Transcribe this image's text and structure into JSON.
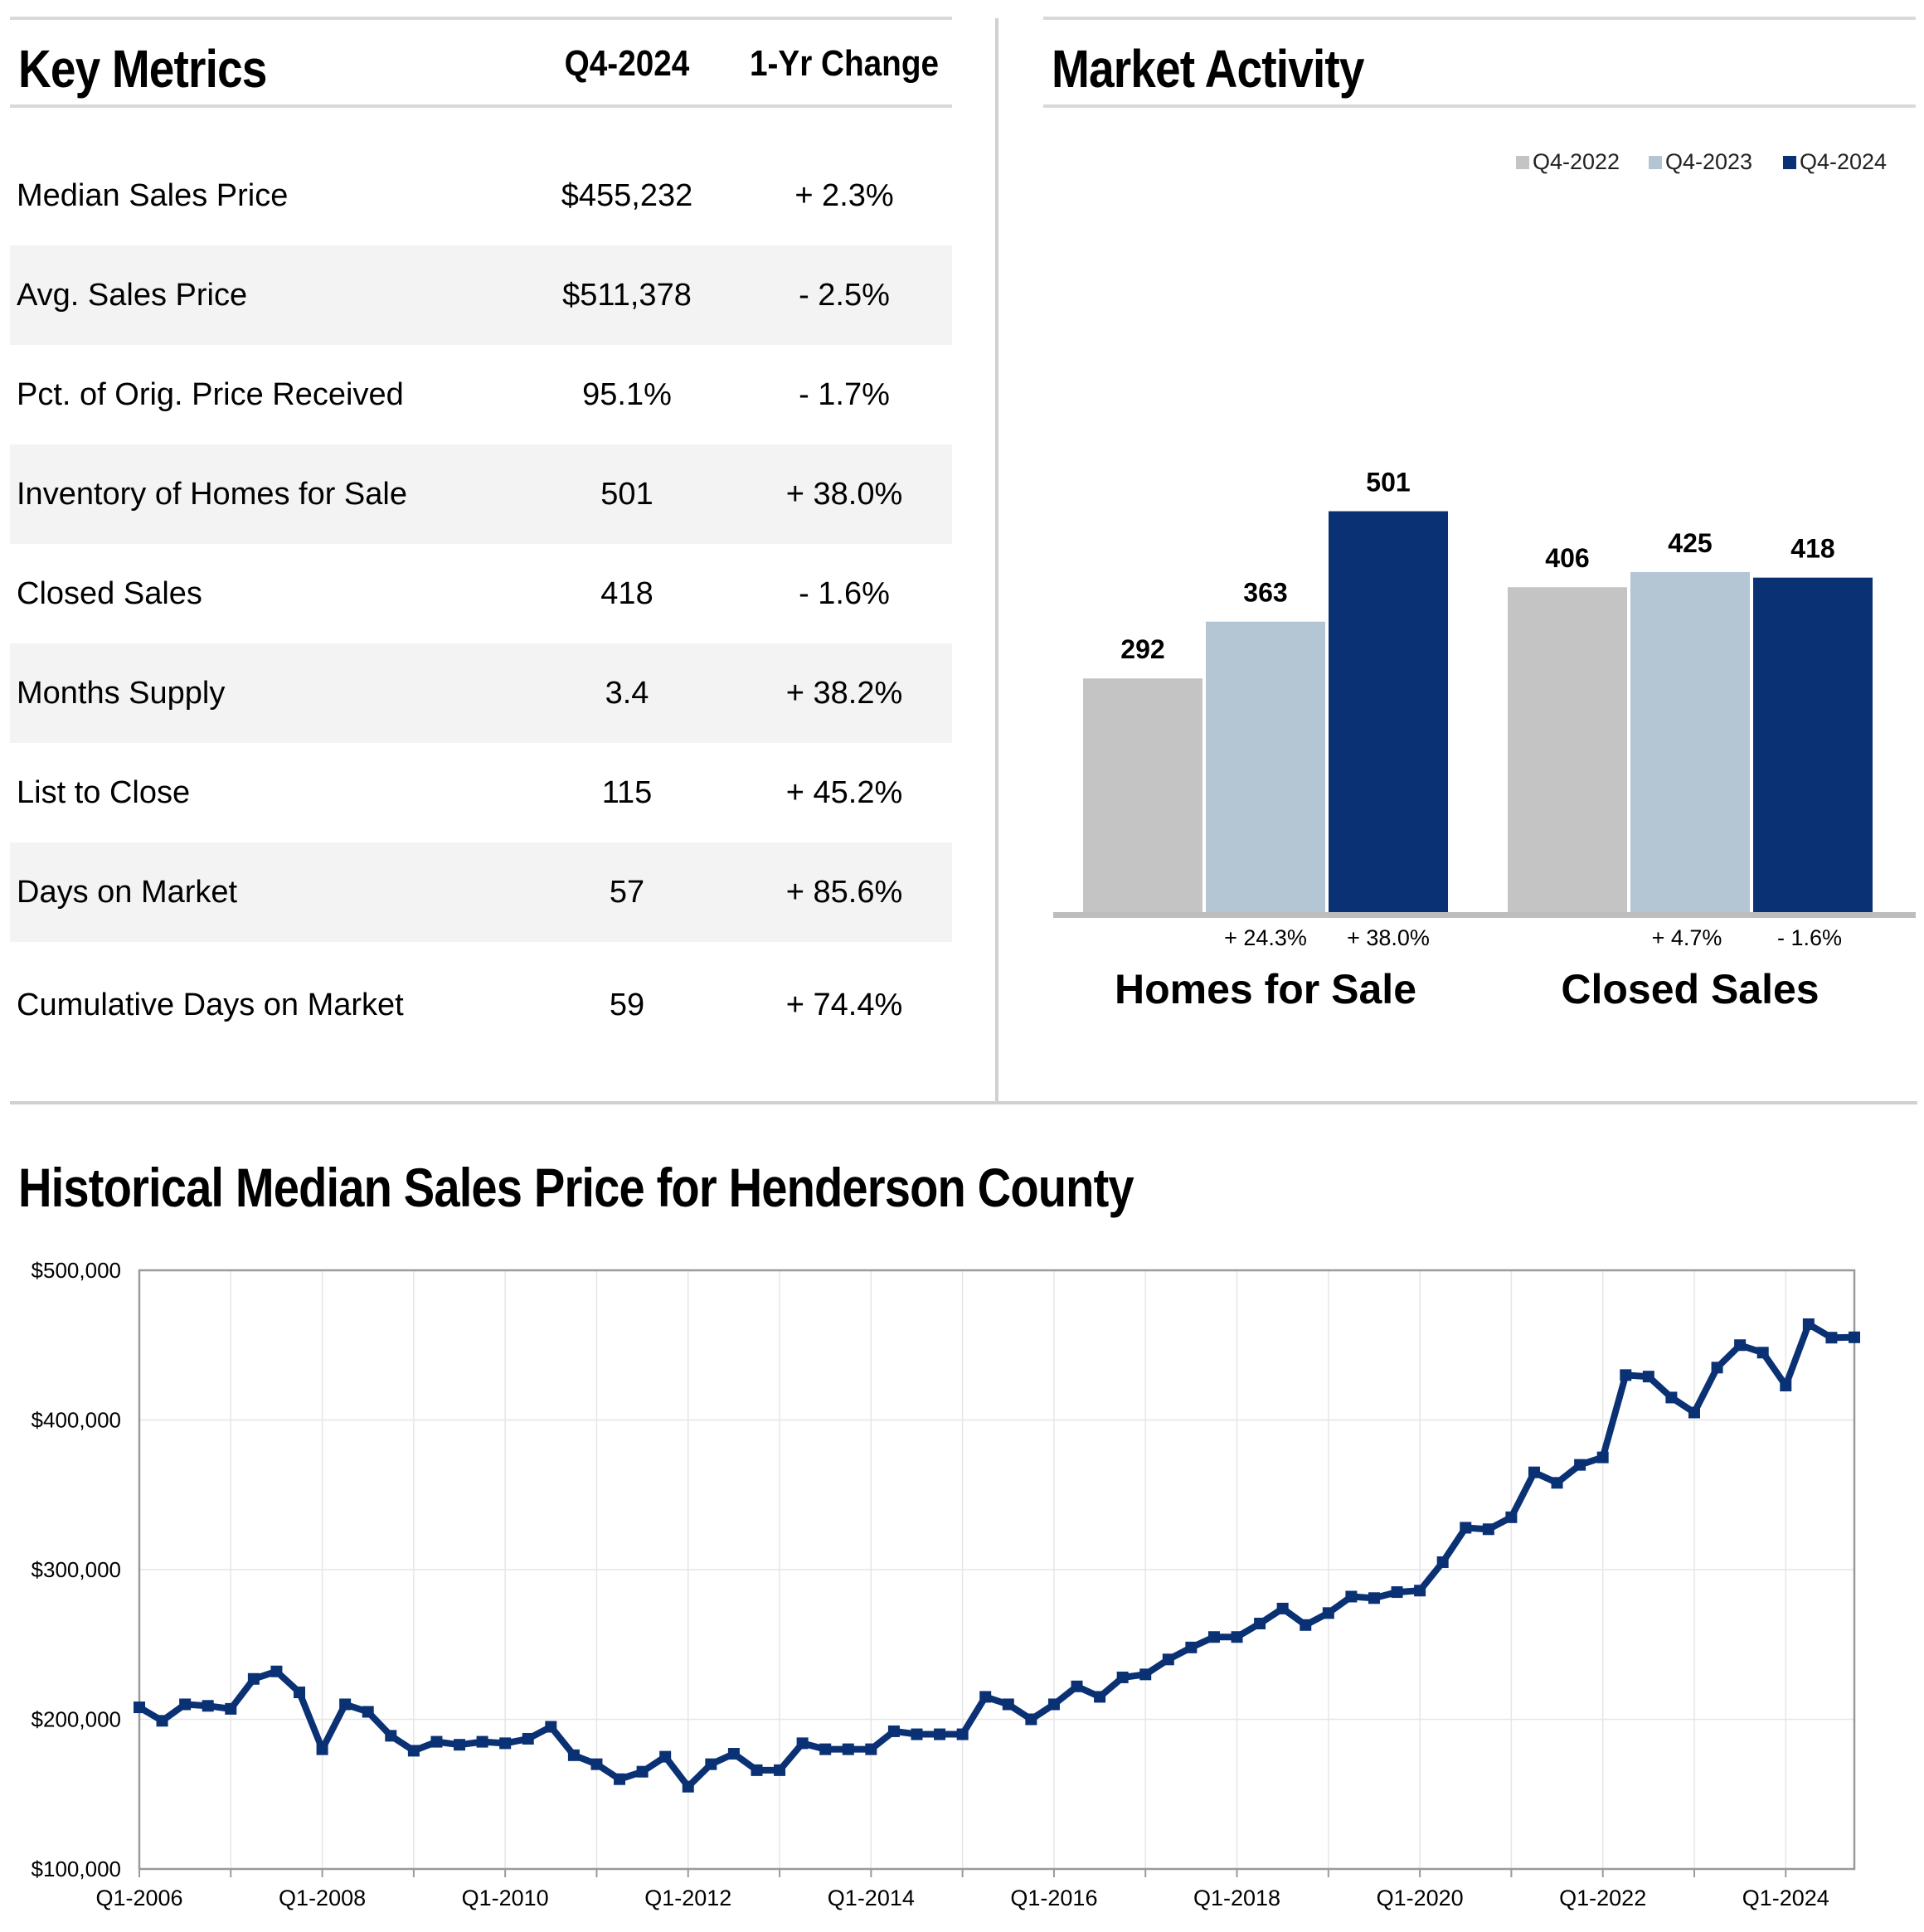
{
  "key_metrics": {
    "title": "Key Metrics",
    "col_period": "Q4-2024",
    "col_change": "1-Yr Change",
    "rows": [
      {
        "label": "Median Sales Price",
        "value": "$455,232",
        "change": "+ 2.3%"
      },
      {
        "label": "Avg. Sales Price",
        "value": "$511,378",
        "change": "- 2.5%"
      },
      {
        "label": "Pct. of Orig. Price Received",
        "value": "95.1%",
        "change": "- 1.7%"
      },
      {
        "label": "Inventory of Homes for Sale",
        "value": "501",
        "change": "+ 38.0%"
      },
      {
        "label": "Closed Sales",
        "value": "418",
        "change": "- 1.6%"
      },
      {
        "label": "Months Supply",
        "value": "3.4",
        "change": "+ 38.2%"
      },
      {
        "label": "List to Close",
        "value": "115",
        "change": "+ 45.2%"
      },
      {
        "label": "Days on Market",
        "value": "57",
        "change": "+ 85.6%"
      },
      {
        "label": "Cumulative Days on Market",
        "value": "59",
        "change": "+ 74.4%"
      }
    ]
  },
  "market_activity": {
    "title": "Market Activity"
  },
  "historical": {
    "title": "Historical Median Sales Price for Henderson County"
  },
  "colors": {
    "q4_2022": "#c4c4c4",
    "q4_2023": "#b4c5d4",
    "q4_2024": "#0b3175",
    "line": "#0b3175",
    "grid": "#e6e6e6"
  },
  "chart_data": [
    {
      "type": "bar",
      "title": "Market Activity",
      "categories": [
        "Homes for Sale",
        "Closed Sales"
      ],
      "series": [
        {
          "name": "Q4-2022",
          "values": [
            292,
            406
          ]
        },
        {
          "name": "Q4-2023",
          "values": [
            363,
            425
          ]
        },
        {
          "name": "Q4-2024",
          "values": [
            501,
            418
          ]
        }
      ],
      "changes": [
        [
          "+ 24.3%",
          "+ 38.0%"
        ],
        [
          "+ 4.7%",
          "- 1.6%"
        ]
      ],
      "legend": "top-right",
      "ylim": [
        0,
        520
      ]
    },
    {
      "type": "line",
      "title": "Historical Median Sales Price for Henderson County",
      "xlabel": "",
      "ylabel": "",
      "ylim": [
        100000,
        500000
      ],
      "y_ticks": [
        "$100,000",
        "$200,000",
        "$300,000",
        "$400,000",
        "$500,000"
      ],
      "y_tick_values": [
        100000,
        200000,
        300000,
        400000,
        500000
      ],
      "x_tick_labels": [
        "Q1-2006",
        "Q1-2008",
        "Q1-2010",
        "Q1-2012",
        "Q1-2014",
        "Q1-2016",
        "Q1-2018",
        "Q1-2020",
        "Q1-2022",
        "Q1-2024"
      ],
      "x_tick_indices": [
        0,
        8,
        16,
        24,
        32,
        40,
        48,
        56,
        64,
        72
      ],
      "x_start": "Q1-2006",
      "values": [
        208000,
        199000,
        210000,
        209000,
        207000,
        227000,
        232000,
        218000,
        180000,
        210000,
        205000,
        189000,
        179000,
        185000,
        183000,
        185000,
        184000,
        187000,
        195000,
        176000,
        170000,
        160000,
        165000,
        175000,
        155000,
        170000,
        177000,
        166000,
        166000,
        184000,
        180000,
        180000,
        180000,
        192000,
        190000,
        190000,
        190000,
        215000,
        210000,
        200000,
        210000,
        222000,
        215000,
        228000,
        230000,
        240000,
        248000,
        255000,
        255000,
        264000,
        274000,
        263000,
        271000,
        282000,
        281000,
        285000,
        286000,
        305000,
        328000,
        327000,
        335000,
        365000,
        358000,
        370000,
        375000,
        430000,
        429000,
        415000,
        405000,
        435000,
        450000,
        445000,
        423000,
        464000,
        455000,
        455232
      ]
    }
  ]
}
